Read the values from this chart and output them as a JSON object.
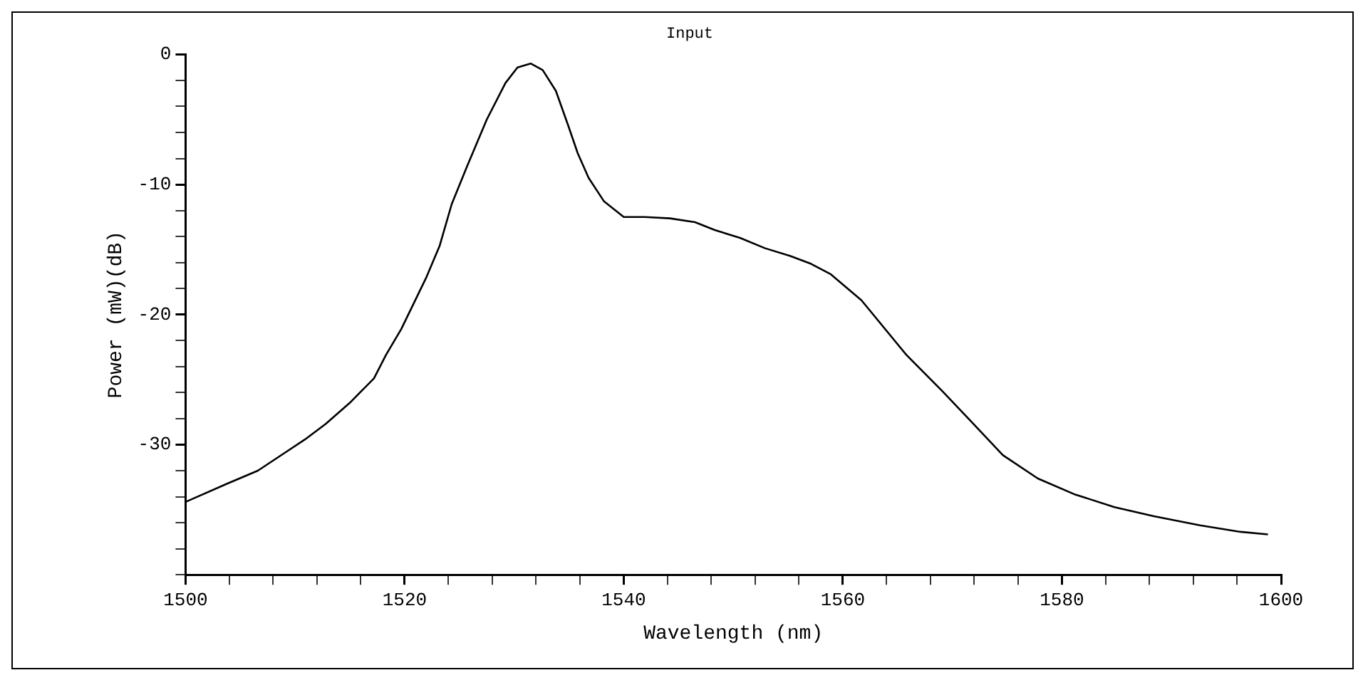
{
  "chart_data": {
    "type": "line",
    "title": "Input",
    "xlabel": "Wavelength (nm)",
    "ylabel": "Power (mW)(dB)",
    "series": [
      {
        "color": "#000000",
        "x": [
          1500,
          1503.8,
          1506.6,
          1509.1,
          1510.9,
          1512.8,
          1515.1,
          1517.2,
          1518.3,
          1519.7,
          1522.0,
          1523.2,
          1524.3,
          1525.7,
          1527.5,
          1529.2,
          1530.3,
          1531.5,
          1532.6,
          1533.8,
          1534.9,
          1535.8,
          1536.8,
          1538.2,
          1540,
          1541.9,
          1544.2,
          1546.5,
          1548.3,
          1550.6,
          1552.9,
          1555.2,
          1557.1,
          1558.9,
          1561.7,
          1565.8,
          1569.1,
          1571.8,
          1574.6,
          1577.8,
          1581.1,
          1584.8,
          1588.4,
          1592.6,
          1596.3,
          1598.8
        ],
        "values": [
          -34.4,
          -33.0,
          -32.0,
          -30.6,
          -29.6,
          -28.4,
          -26.7,
          -24.9,
          -23.1,
          -21.1,
          -17.1,
          -14.7,
          -11.5,
          -8.6,
          -5.0,
          -2.2,
          -1.0,
          -0.7,
          -1.2,
          -2.8,
          -5.4,
          -7.6,
          -9.5,
          -11.3,
          -12.5,
          -12.5,
          -12.6,
          -12.9,
          -13.5,
          -14.1,
          -14.9,
          -15.5,
          -16.1,
          -16.9,
          -18.9,
          -23.1,
          -25.9,
          -28.3,
          -30.8,
          -32.6,
          -33.8,
          -34.8,
          -35.5,
          -36.2,
          -36.7,
          -36.9
        ]
      }
    ],
    "xlim": [
      1500,
      1600
    ],
    "xticks": [
      1500,
      {
        "value": 1504,
        "label": null
      },
      {
        "value": 1508,
        "label": null
      },
      {
        "value": 1512,
        "label": null
      },
      {
        "value": 1516,
        "label": null
      },
      1520,
      {
        "value": 1524,
        "label": null
      },
      {
        "value": 1528,
        "label": null
      },
      {
        "value": 1532,
        "label": null
      },
      {
        "value": 1536,
        "label": null
      },
      1540,
      {
        "value": 1544,
        "label": null
      },
      {
        "value": 1548,
        "label": null
      },
      {
        "value": 1552,
        "label": null
      },
      {
        "value": 1556,
        "label": null
      },
      1560,
      {
        "value": 1564,
        "label": null
      },
      {
        "value": 1568,
        "label": null
      },
      {
        "value": 1572,
        "label": null
      },
      {
        "value": 1576,
        "label": null
      },
      1580,
      {
        "value": 1584,
        "label": null
      },
      {
        "value": 1588,
        "label": null
      },
      {
        "value": 1592,
        "label": null
      },
      {
        "value": 1596,
        "label": null
      },
      1600
    ],
    "ylim": [
      -40,
      0
    ],
    "yticks": [
      {
        "value": -40,
        "label": null
      },
      {
        "value": -38,
        "label": null
      },
      {
        "value": -36,
        "label": null
      },
      {
        "value": -34,
        "label": null
      },
      {
        "value": -32,
        "label": null
      },
      -30,
      {
        "value": -28,
        "label": null
      },
      {
        "value": -26,
        "label": null
      },
      {
        "value": -24,
        "label": null
      },
      {
        "value": -22,
        "label": null
      },
      -20,
      {
        "value": -18,
        "label": null
      },
      {
        "value": -16,
        "label": null
      },
      {
        "value": -14,
        "label": null
      },
      {
        "value": -12,
        "label": null
      },
      -10,
      {
        "value": -8,
        "label": null
      },
      {
        "value": -6,
        "label": null
      },
      {
        "value": -4,
        "label": null
      },
      {
        "value": -2,
        "label": null
      },
      0
    ],
    "grid": false,
    "legend": false,
    "marker": "none",
    "line_style": "solid"
  }
}
